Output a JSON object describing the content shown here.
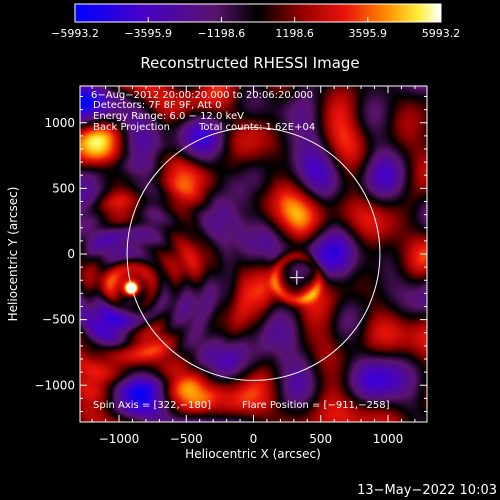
{
  "chart_data": {
    "type": "heatmap",
    "title": "Reconstructed RHESSI Image",
    "xlabel": "Heliocentric X (arcsec)",
    "ylabel": "Heliocentric Y (arcsec)",
    "xlim": [
      -1290,
      1290
    ],
    "ylim": [
      -1280,
      1280
    ],
    "x_ticks": [
      -1000,
      -500,
      0,
      500,
      1000
    ],
    "y_ticks": [
      -1000,
      -500,
      0,
      500,
      1000
    ],
    "x_tick_labels": [
      "−1000",
      "−500",
      "0",
      "500",
      "1000"
    ],
    "y_tick_labels": [
      "−1000",
      "−500",
      "0",
      "500",
      "1000"
    ],
    "colorbar": {
      "min": -5993.2,
      "max": 5993.2,
      "ticks": [
        -5993.2,
        -3595.9,
        -1198.6,
        1198.6,
        3595.9,
        5993.2
      ],
      "tick_labels": [
        "−5993.2",
        "−3595.9",
        "−1198.6",
        "1198.6",
        "3595.9",
        "5993.2"
      ]
    },
    "annotations": {
      "time_range": "6−Aug−2012 20:00:20.000 to 20:06:20.000",
      "detectors": "Detectors: 7F 8F 9F, Att 0",
      "energy_range": "Energy Range: 6.0 − 12.0 keV",
      "method": "Back Projection",
      "total_counts": "Total counts: 1.62E+04",
      "spin_axis": "Spin Axis = [322,−180]",
      "flare_position": "Flare Position = [−911,−258]"
    },
    "solar_disk": {
      "center": [
        0,
        0
      ],
      "radius": 940
    },
    "spin_axis_marker": [
      322,
      -180
    ],
    "flare_source": [
      -911,
      -258
    ],
    "footer": "13−May−2022 10:03"
  }
}
